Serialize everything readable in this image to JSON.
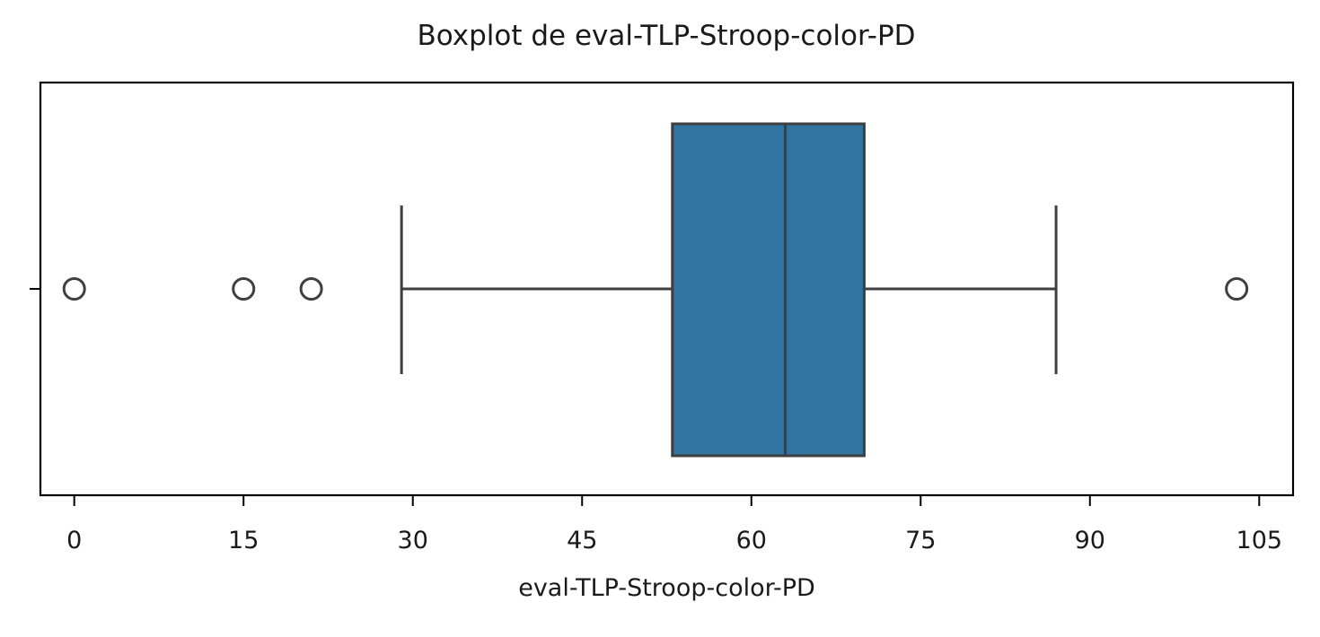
{
  "chart_data": {
    "type": "boxplot",
    "title": "Boxplot de eval-TLP-Stroop-color-PD",
    "xlabel": "eval-TLP-Stroop-color-PD",
    "ylabel": "",
    "orientation": "horizontal",
    "xlim": [
      -3,
      108
    ],
    "xticks": [
      0,
      15,
      30,
      45,
      60,
      75,
      90,
      105
    ],
    "box": {
      "whisker_low": 29,
      "q1": 53,
      "median": 63,
      "q3": 70,
      "whisker_high": 87,
      "outliers": [
        0,
        15,
        21,
        103
      ]
    },
    "colors": {
      "box_fill": "#3274a1",
      "line": "#3f3f3f"
    },
    "grid": false,
    "legend": "none"
  }
}
